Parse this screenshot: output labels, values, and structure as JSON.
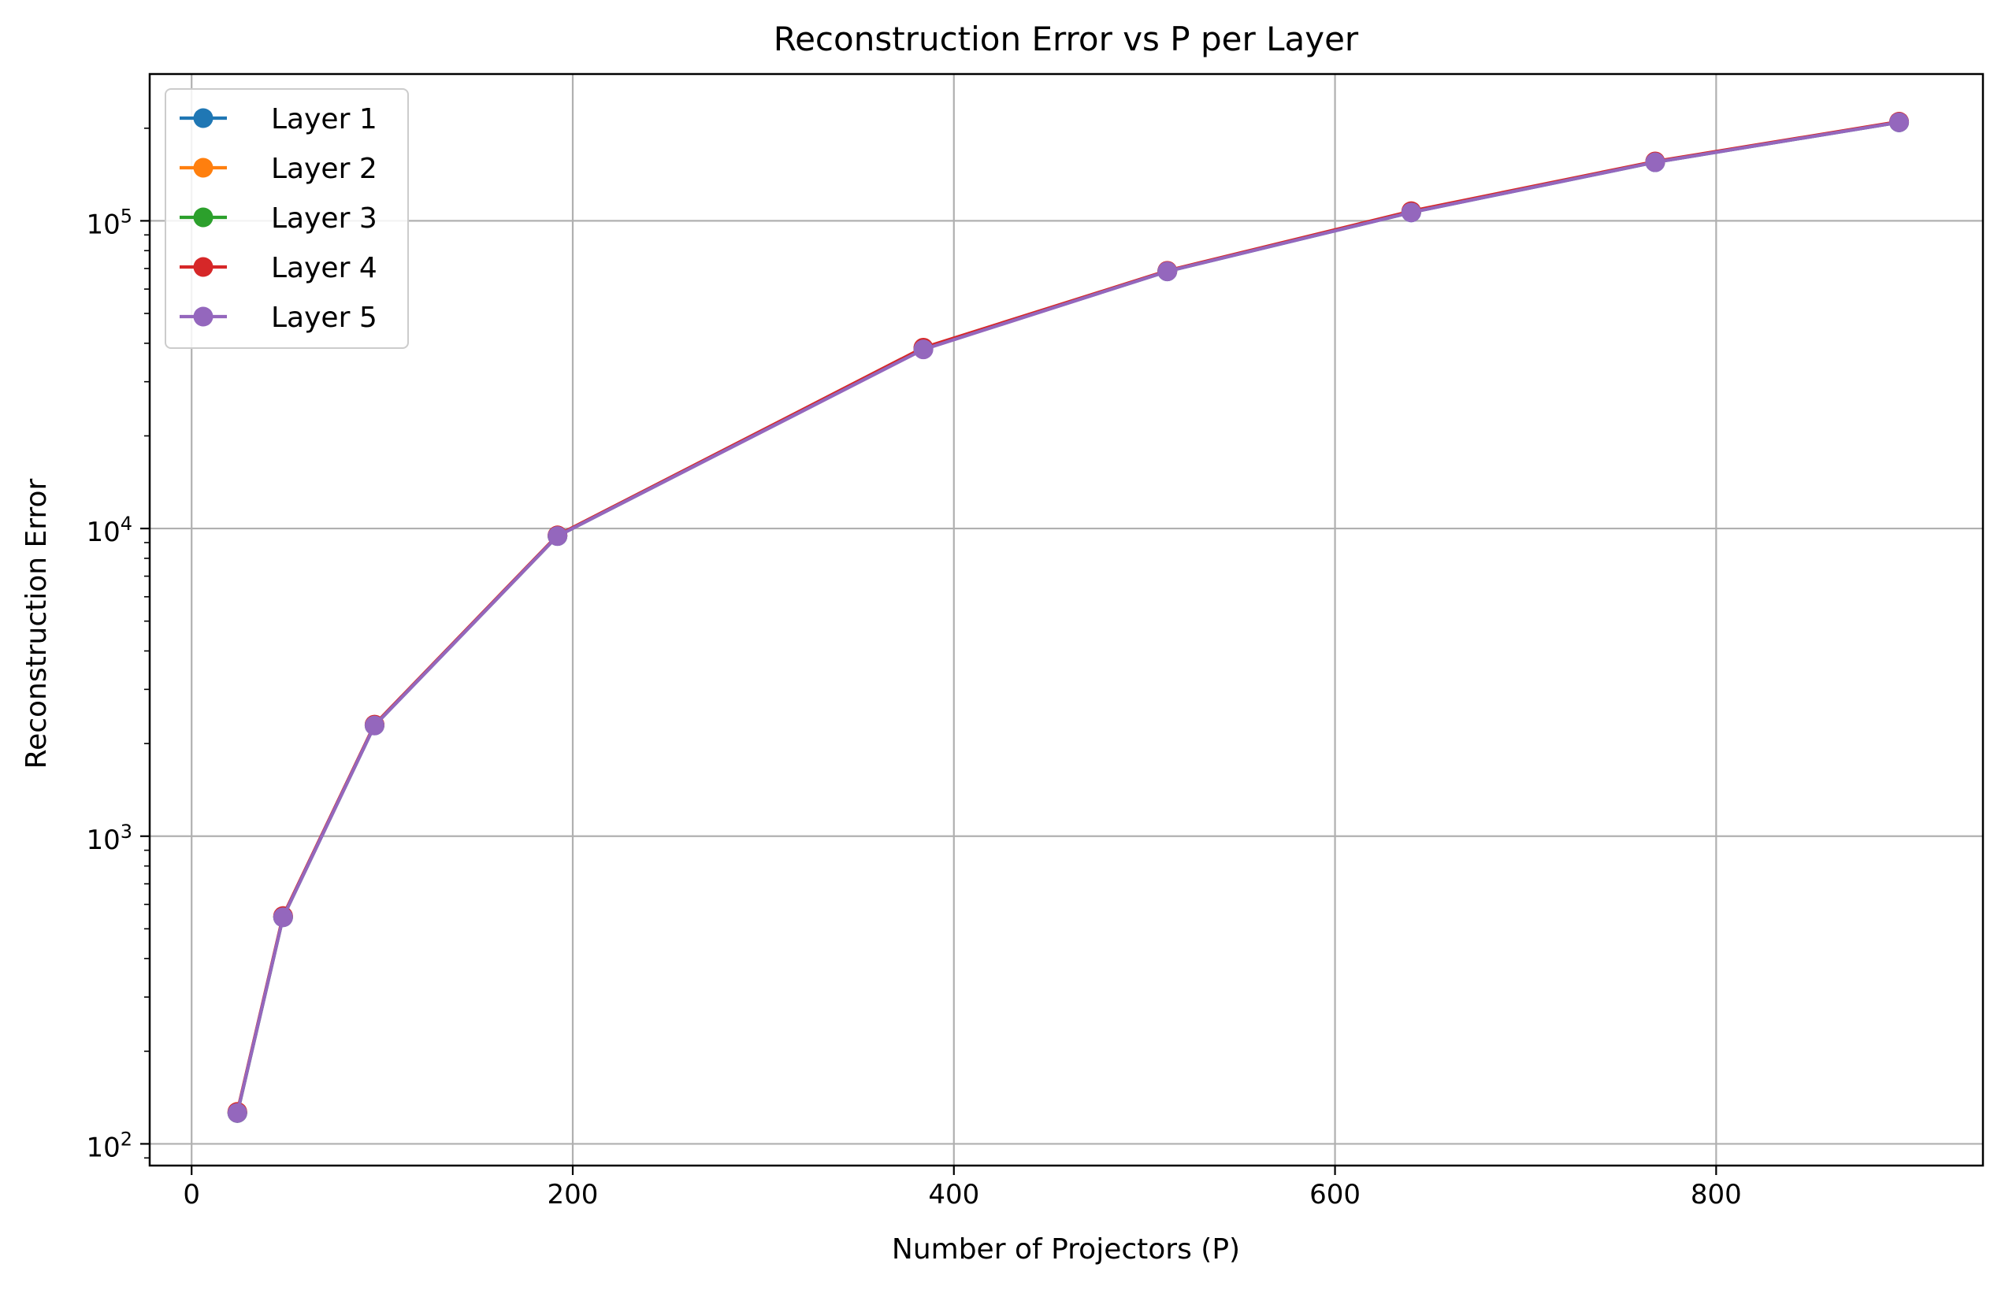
{
  "chart_data": {
    "type": "line",
    "title": "Reconstruction Error vs P per Layer",
    "xlabel": "Number of Projectors (P)",
    "ylabel": "Reconstruction Error",
    "xscale": "linear",
    "yscale": "log",
    "xlim": [
      -22,
      940
    ],
    "ylim": [
      85,
      300000
    ],
    "xticks": [
      0,
      200,
      400,
      600,
      800
    ],
    "xtick_labels": [
      "0",
      "200",
      "400",
      "600",
      "800"
    ],
    "yticks": [
      100,
      1000,
      10000,
      100000
    ],
    "ytick_labels": [
      {
        "base": "10",
        "exp": "2"
      },
      {
        "base": "10",
        "exp": "3"
      },
      {
        "base": "10",
        "exp": "4"
      },
      {
        "base": "10",
        "exp": "5"
      }
    ],
    "grid": true,
    "legend_position": "top-left",
    "marker": "circle",
    "x": [
      24,
      48,
      96,
      192,
      384,
      512,
      640,
      768,
      896
    ],
    "series": [
      {
        "name": "Layer 1",
        "color": "#1f77b4",
        "values": [
          126,
          545,
          2290,
          9450,
          38300,
          68500,
          106500,
          155000,
          209000
        ]
      },
      {
        "name": "Layer 2",
        "color": "#ff7f0e",
        "values": [
          127,
          548,
          2300,
          9480,
          38600,
          68700,
          107000,
          155500,
          209500
        ]
      },
      {
        "name": "Layer 3",
        "color": "#2ca02c",
        "values": [
          126,
          546,
          2295,
          9460,
          38400,
          68600,
          106800,
          155200,
          209200
        ]
      },
      {
        "name": "Layer 4",
        "color": "#d62728",
        "values": [
          127,
          550,
          2305,
          9500,
          38700,
          68800,
          107500,
          156000,
          210000
        ]
      },
      {
        "name": "Layer 5",
        "color": "#9467bd",
        "values": [
          126,
          545,
          2290,
          9450,
          38200,
          68500,
          106500,
          155000,
          209000
        ]
      }
    ]
  }
}
